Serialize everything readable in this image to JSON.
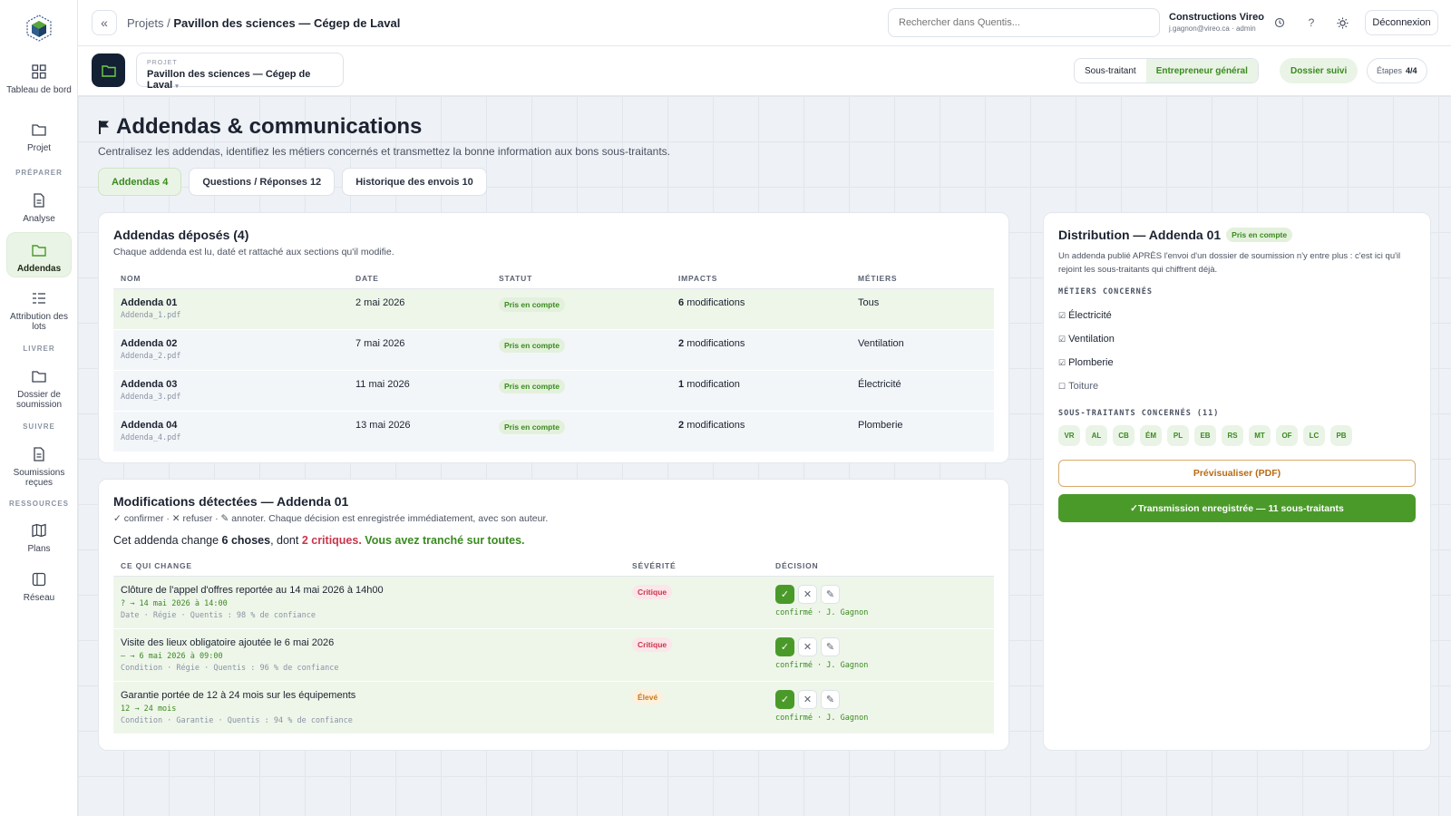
{
  "sidebar": {
    "items": [
      {
        "label": "Tableau de bord"
      },
      {
        "label": "Projet"
      },
      {
        "label": "Analyse"
      },
      {
        "label": "Addendas"
      },
      {
        "label": "Attribution des lots"
      },
      {
        "label": "Dossier de soumission"
      },
      {
        "label": "Soumissions reçues"
      },
      {
        "label": "Plans"
      },
      {
        "label": "Réseau"
      }
    ],
    "sections": [
      "PRÉPARER",
      "LIVRER",
      "SUIVRE",
      "RESSOURCES"
    ]
  },
  "topbar": {
    "collapse_icon": "«",
    "crumb_root": "Projets /",
    "crumb_current": "Pavillon des sciences — Cégep de Laval",
    "search_placeholder": "Rechercher dans Quentis...",
    "org_name": "Constructions Vireo",
    "org_user": "j.gagnon@vireo.ca · admin",
    "help_icon": "?",
    "logout": "Déconnexion"
  },
  "projbar": {
    "label": "PROJET",
    "value": "Pavillon des sciences — Cégep de Laval",
    "roles": [
      "Sous-traitant",
      "Entrepreneur général"
    ],
    "dossier": "Dossier suivi",
    "steps_label": "Étapes",
    "steps_value": "4/4"
  },
  "page": {
    "title": "Addendas & communications",
    "subtitle": "Centralisez les addendas, identifiez les métiers concernés et transmettez la bonne information aux bons sous-traitants.",
    "tabs": [
      {
        "label": "Addendas 4"
      },
      {
        "label": "Questions / Réponses 12"
      },
      {
        "label": "Historique des envois 10"
      }
    ]
  },
  "addenda": {
    "title": "Addendas déposés (4)",
    "desc": "Chaque addenda est lu, daté et rattaché aux sections qu'il modifie.",
    "columns": [
      "NOM",
      "DATE",
      "STATUT",
      "IMPACTS",
      "MÉTIERS"
    ],
    "rows": [
      {
        "name": "Addenda 01",
        "file": "Addenda_1.pdf",
        "date": "2 mai 2026",
        "status": "Pris en compte",
        "count": "6",
        "unit": "modifications",
        "trade": "Tous"
      },
      {
        "name": "Addenda 02",
        "file": "Addenda_2.pdf",
        "date": "7 mai 2026",
        "status": "Pris en compte",
        "count": "2",
        "unit": "modifications",
        "trade": "Ventilation"
      },
      {
        "name": "Addenda 03",
        "file": "Addenda_3.pdf",
        "date": "11 mai 2026",
        "status": "Pris en compte",
        "count": "1",
        "unit": "modification",
        "trade": "Électricité"
      },
      {
        "name": "Addenda 04",
        "file": "Addenda_4.pdf",
        "date": "13 mai 2026",
        "status": "Pris en compte",
        "count": "2",
        "unit": "modifications",
        "trade": "Plomberie"
      }
    ]
  },
  "mods": {
    "title": "Modifications détectées — Addenda 01",
    "legend": "✓ confirmer · ✕ refuser · ✎ annoter. Chaque décision est enregistrée immédiatement, avec son auteur.",
    "summary_pre": "Cet addenda change ",
    "summary_count": "6 choses",
    "summary_mid": ", dont ",
    "summary_crit": "2 critiques",
    "summary_dot": ".",
    "summary_done": " Vous avez tranché sur toutes.",
    "columns": [
      "CE QUI CHANGE",
      "SÉVÉRITÉ",
      "DÉCISION"
    ],
    "rows": [
      {
        "title": "Clôture de l'appel d'offres reportée au 14 mai 2026 à 14h00",
        "change": "? → 14 mai 2026 à 14:00",
        "meta": "Date · Régie · Quentis : 98 % de confiance",
        "severity": "Critique",
        "sev": "r",
        "decision": "confirmé · J. Gagnon"
      },
      {
        "title": "Visite des lieux obligatoire ajoutée le 6 mai 2026",
        "change": "— → 6 mai 2026 à 09:00",
        "meta": "Condition · Régie · Quentis : 96 % de confiance",
        "severity": "Critique",
        "sev": "r",
        "decision": "confirmé · J. Gagnon"
      },
      {
        "title": "Garantie portée de 12 à 24 mois sur les équipements",
        "change": "12 → 24 mois",
        "meta": "Condition · Garantie · Quentis : 94 % de confiance",
        "severity": "Élevé",
        "sev": "o",
        "decision": "confirmé · J. Gagnon"
      }
    ],
    "btn_confirm": "✓",
    "btn_refuse": "✕",
    "btn_annotate": "✎"
  },
  "distribution": {
    "title": "Distribution — Addenda 01",
    "badge": "Pris en compte",
    "desc": "Un addenda publié APRÈS l'envoi d'un dossier de soumission n'y entre plus : c'est ici qu'il rejoint les sous-traitants qui chiffrent déjà.",
    "trades_label": "MÉTIERS CONCERNÉS",
    "trades": [
      {
        "label": "Électricité",
        "box": "☑"
      },
      {
        "label": "Ventilation",
        "box": "☑"
      },
      {
        "label": "Plomberie",
        "box": "☑"
      },
      {
        "label": "Toiture",
        "box": "☐"
      }
    ],
    "subs_label": "SOUS-TRAITANTS CONCERNÉS (11)",
    "subs": [
      "VR",
      "AL",
      "CB",
      "ÉM",
      "PL",
      "EB",
      "RS",
      "MT",
      "OF",
      "LC",
      "PB"
    ],
    "preview": "Prévisualiser (PDF)",
    "transmit": "✓Transmission enregistrée — 11 sous-traitants"
  }
}
